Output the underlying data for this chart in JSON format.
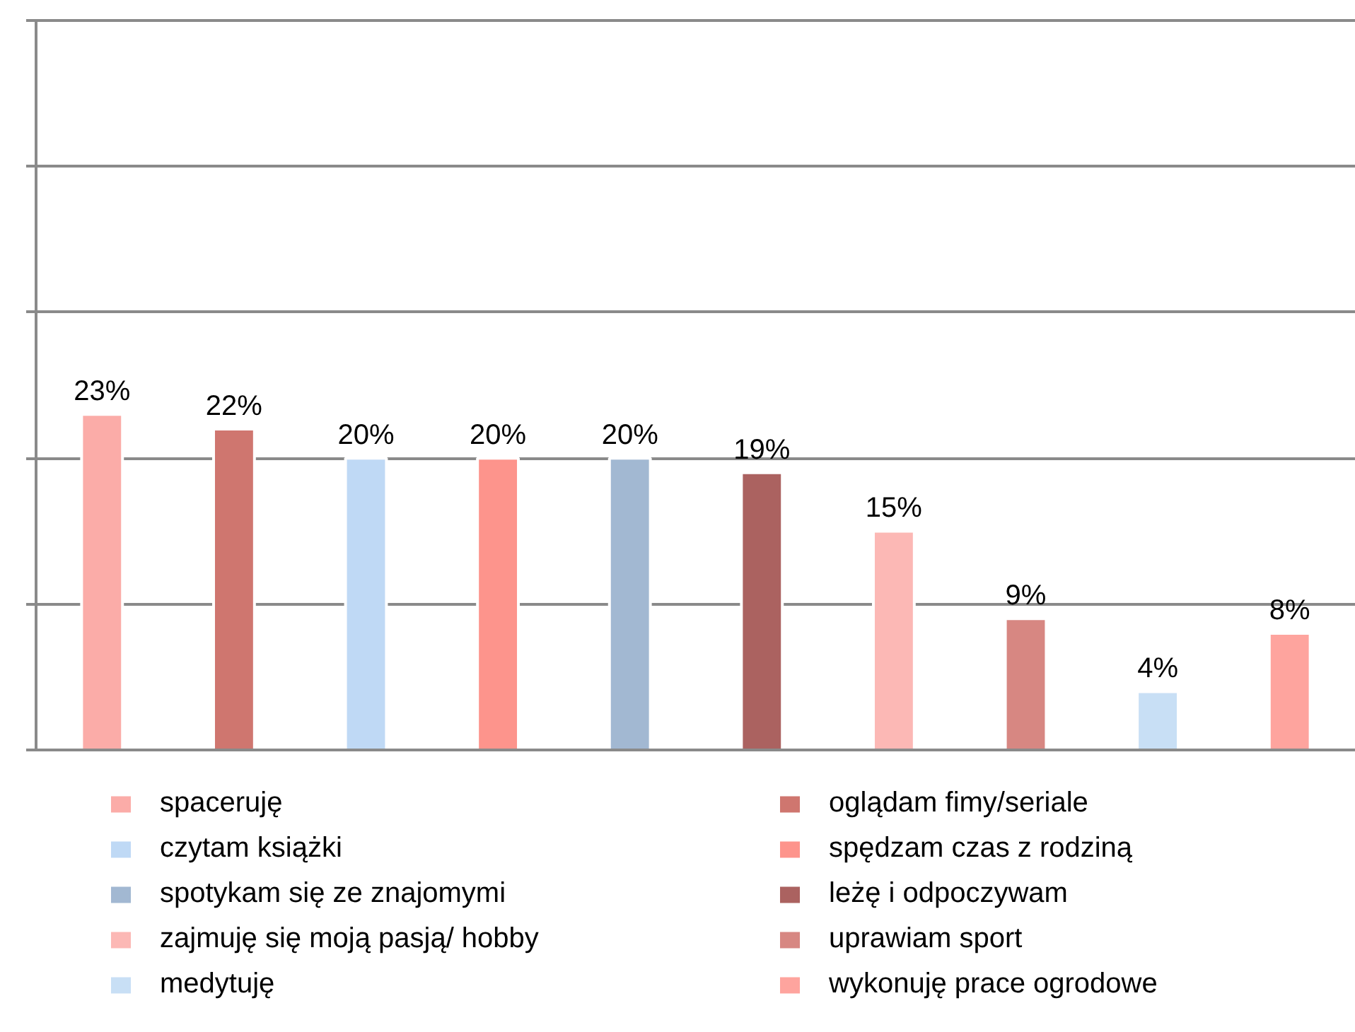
{
  "chart_data": {
    "type": "bar",
    "categories": [
      null,
      null,
      null,
      null,
      null,
      null,
      null,
      null,
      null,
      null
    ],
    "stacked": true,
    "series": [
      {
        "name": "spaceruję",
        "color": "#fbaca8",
        "values": [
          23,
          null,
          null,
          null,
          null,
          null,
          null,
          null,
          null,
          null
        ],
        "value_labels": [
          "23%",
          null,
          null,
          null,
          null,
          null,
          null,
          null,
          null,
          null
        ]
      },
      {
        "name": "oglądam fimy/seriale",
        "color": "#cf766f",
        "values": [
          null,
          22,
          null,
          null,
          null,
          null,
          null,
          null,
          null,
          null
        ],
        "value_labels": [
          null,
          "22%",
          null,
          null,
          null,
          null,
          null,
          null,
          null,
          null
        ]
      },
      {
        "name": "czytam książki",
        "color": "#bfd9f5",
        "values": [
          null,
          null,
          20,
          null,
          null,
          null,
          null,
          null,
          null,
          null
        ],
        "value_labels": [
          null,
          null,
          "20%",
          null,
          null,
          null,
          null,
          null,
          null,
          null
        ]
      },
      {
        "name": "spędzam czas z rodziną",
        "color": "#fd948c",
        "values": [
          null,
          null,
          null,
          20,
          null,
          null,
          null,
          null,
          null,
          null
        ],
        "value_labels": [
          null,
          null,
          null,
          "20%",
          null,
          null,
          null,
          null,
          null,
          null
        ]
      },
      {
        "name": "spotykam się ze znajomymi",
        "color": "#a2b8d2",
        "values": [
          null,
          null,
          null,
          null,
          20,
          null,
          null,
          null,
          null,
          null
        ],
        "value_labels": [
          null,
          null,
          null,
          null,
          "20%",
          null,
          null,
          null,
          null,
          null
        ]
      },
      {
        "name": "leżę i odpoczywam",
        "color": "#ab6260",
        "values": [
          null,
          null,
          null,
          null,
          null,
          19,
          null,
          null,
          null,
          null
        ],
        "value_labels": [
          null,
          null,
          null,
          null,
          null,
          "19%",
          null,
          null,
          null,
          null
        ]
      },
      {
        "name": "zajmuję się moją pasją/ hobby",
        "color": "#fcb8b5",
        "values": [
          null,
          null,
          null,
          null,
          null,
          null,
          15,
          null,
          null,
          null
        ],
        "value_labels": [
          null,
          null,
          null,
          null,
          null,
          null,
          "15%",
          null,
          null,
          null
        ]
      },
      {
        "name": "uprawiam sport",
        "color": "#d78782",
        "values": [
          null,
          null,
          null,
          null,
          null,
          null,
          null,
          9,
          null,
          null
        ],
        "value_labels": [
          null,
          null,
          null,
          null,
          null,
          null,
          null,
          "9%",
          null,
          null
        ]
      },
      {
        "name": "medytuję",
        "color": "#c8dff5",
        "values": [
          null,
          null,
          null,
          null,
          null,
          null,
          null,
          null,
          4,
          null
        ],
        "value_labels": [
          null,
          null,
          null,
          null,
          null,
          null,
          null,
          null,
          "4%",
          null
        ]
      },
      {
        "name": "wykonuję prace ogrodowe",
        "color": "#fea49e",
        "values": [
          null,
          null,
          null,
          null,
          null,
          null,
          null,
          null,
          null,
          8
        ],
        "value_labels": [
          null,
          null,
          null,
          null,
          null,
          null,
          null,
          null,
          null,
          "8%"
        ]
      }
    ],
    "ylim": [
      0,
      50
    ],
    "yticks": [
      {
        "value": 0,
        "label": null
      },
      {
        "value": 10,
        "label": null
      },
      {
        "value": 20,
        "label": null
      },
      {
        "value": 30,
        "label": null
      },
      {
        "value": 40,
        "label": null
      },
      {
        "value": 50,
        "label": null
      }
    ],
    "grid": "y",
    "legend": "bottom"
  }
}
